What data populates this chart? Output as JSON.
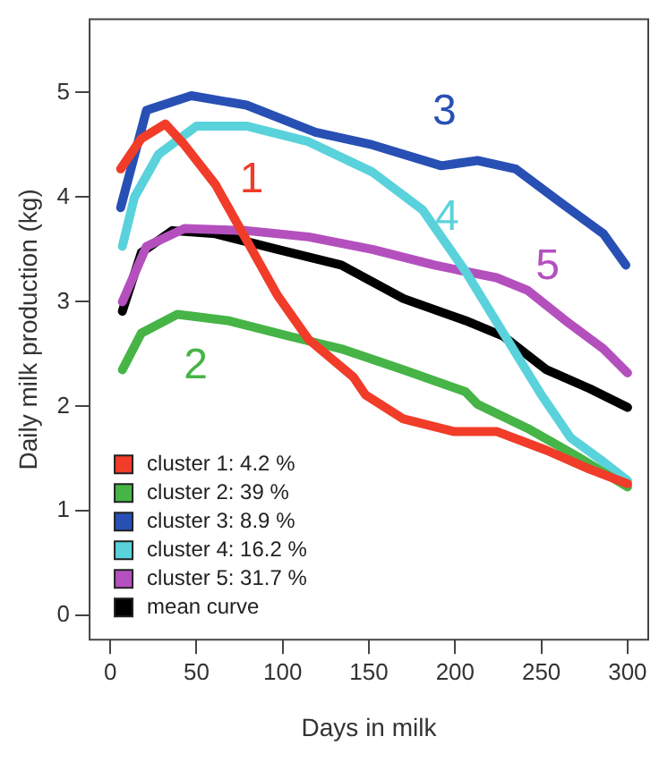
{
  "chart_data": {
    "type": "line",
    "xlabel": "Days in milk",
    "ylabel": "Daily milk production (kg)",
    "xlim": [
      -12,
      312
    ],
    "ylim": [
      -0.23,
      5.7
    ],
    "xticks": [
      0,
      50,
      100,
      150,
      200,
      250,
      300
    ],
    "yticks": [
      0,
      1,
      2,
      3,
      4,
      5
    ],
    "grid": false,
    "legend": "bottom left",
    "line_style": "solid",
    "series": [
      {
        "name": "cluster 1: 4.2 %",
        "color": "#f03c28",
        "x": [
          6,
          18,
          32,
          43,
          61,
          79,
          97,
          115,
          141,
          148,
          170,
          199,
          224,
          253,
          278,
          300
        ],
        "values": [
          4.27,
          4.56,
          4.7,
          4.5,
          4.12,
          3.59,
          3.06,
          2.64,
          2.28,
          2.11,
          1.88,
          1.76,
          1.76,
          1.58,
          1.4,
          1.26
        ]
      },
      {
        "name": "cluster 2: 39 %",
        "color": "#46b446",
        "x": [
          7,
          18,
          39,
          68,
          104,
          134,
          170,
          206,
          213,
          242,
          271,
          300
        ],
        "values": [
          2.35,
          2.7,
          2.88,
          2.82,
          2.67,
          2.55,
          2.35,
          2.14,
          2.02,
          1.79,
          1.52,
          1.23
        ]
      },
      {
        "name": "cluster 3: 8.9 %",
        "color": "#2850b4",
        "x": [
          6,
          21,
          47,
          79,
          119,
          152,
          192,
          213,
          235,
          261,
          286,
          299
        ],
        "values": [
          3.9,
          4.83,
          4.97,
          4.88,
          4.62,
          4.5,
          4.3,
          4.35,
          4.27,
          3.95,
          3.65,
          3.35
        ]
      },
      {
        "name": "cluster 4: 16.2 %",
        "color": "#5ad2dc",
        "x": [
          7,
          14,
          28,
          50,
          79,
          115,
          152,
          181,
          206,
          228,
          250,
          267,
          286,
          300
        ],
        "values": [
          3.53,
          4.0,
          4.41,
          4.68,
          4.68,
          4.53,
          4.24,
          3.88,
          3.29,
          2.7,
          2.11,
          1.7,
          1.47,
          1.29
        ]
      },
      {
        "name": "cluster 5: 31.7 %",
        "color": "#b450be",
        "x": [
          7,
          21,
          43,
          79,
          115,
          152,
          188,
          224,
          242,
          264,
          286,
          300
        ],
        "values": [
          3.0,
          3.53,
          3.7,
          3.68,
          3.62,
          3.5,
          3.35,
          3.23,
          3.11,
          2.82,
          2.55,
          2.32
        ]
      },
      {
        "name": "mean curve",
        "color": "#000000",
        "x": [
          7,
          18,
          36,
          61,
          97,
          134,
          170,
          206,
          228,
          253,
          278,
          300
        ],
        "values": [
          2.91,
          3.47,
          3.68,
          3.65,
          3.5,
          3.35,
          3.03,
          2.82,
          2.67,
          2.35,
          2.17,
          1.99
        ]
      }
    ],
    "annotations": [
      "1",
      "2",
      "3",
      "4",
      "5"
    ]
  }
}
